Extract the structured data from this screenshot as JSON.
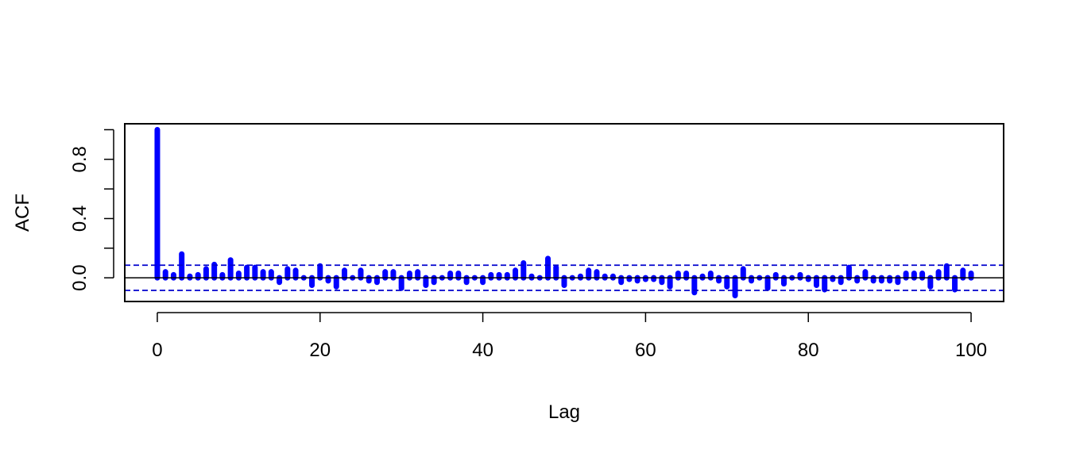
{
  "chart_data": {
    "type": "bar",
    "title": "",
    "xlabel": "Lag",
    "ylabel": "ACF",
    "xlim": [
      -4,
      104
    ],
    "ylim": [
      -0.16,
      1.04
    ],
    "x_ticks": [
      0,
      20,
      40,
      60,
      80,
      100
    ],
    "x_tick_labels": [
      "0",
      "20",
      "40",
      "60",
      "80",
      "100"
    ],
    "y_ticks": [
      0.0,
      0.4,
      0.8
    ],
    "y_tick_labels": [
      "0.0",
      "0.4",
      "0.8"
    ],
    "y_minor_ticks": [
      0.2,
      0.6,
      1.0
    ],
    "confidence_band": 0.085,
    "bar_color": "#0000ff",
    "band_color": "#0000cd",
    "grid": false,
    "legend": "none",
    "x": [
      0,
      1,
      2,
      3,
      4,
      5,
      6,
      7,
      8,
      9,
      10,
      11,
      12,
      13,
      14,
      15,
      16,
      17,
      18,
      19,
      20,
      21,
      22,
      23,
      24,
      25,
      26,
      27,
      28,
      29,
      30,
      31,
      32,
      33,
      34,
      35,
      36,
      37,
      38,
      39,
      40,
      41,
      42,
      43,
      44,
      45,
      46,
      47,
      48,
      49,
      50,
      51,
      52,
      53,
      54,
      55,
      56,
      57,
      58,
      59,
      60,
      61,
      62,
      63,
      64,
      65,
      66,
      67,
      68,
      69,
      70,
      71,
      72,
      73,
      74,
      75,
      76,
      77,
      78,
      79,
      80,
      81,
      82,
      83,
      84,
      85,
      86,
      87,
      88,
      89,
      90,
      91,
      92,
      93,
      94,
      95,
      96,
      97,
      98,
      99,
      100
    ],
    "values": [
      1.0,
      0.04,
      0.02,
      0.16,
      0.01,
      0.02,
      0.06,
      0.09,
      0.02,
      0.12,
      0.03,
      0.07,
      0.07,
      0.04,
      0.04,
      -0.03,
      0.06,
      0.05,
      0.0,
      -0.05,
      0.08,
      -0.02,
      -0.06,
      0.05,
      0.0,
      0.05,
      -0.02,
      -0.03,
      0.04,
      0.04,
      -0.07,
      0.03,
      0.04,
      -0.05,
      -0.03,
      0.0,
      0.03,
      0.03,
      -0.03,
      0.0,
      -0.03,
      0.02,
      0.02,
      0.02,
      0.05,
      0.1,
      0.01,
      0.0,
      0.13,
      0.07,
      -0.05,
      0.0,
      0.01,
      0.05,
      0.04,
      0.01,
      0.01,
      -0.03,
      -0.01,
      -0.02,
      -0.01,
      -0.01,
      -0.03,
      -0.06,
      0.03,
      0.03,
      -0.1,
      0.01,
      0.03,
      -0.02,
      -0.06,
      -0.12,
      0.06,
      -0.02,
      0.0,
      -0.07,
      0.02,
      -0.04,
      0.0,
      0.02,
      -0.01,
      -0.05,
      -0.08,
      -0.01,
      -0.03,
      0.07,
      -0.02,
      0.04,
      -0.02,
      -0.02,
      -0.02,
      -0.03,
      0.03,
      0.03,
      0.03,
      -0.06,
      0.04,
      0.08,
      -0.08,
      0.05,
      0.03
    ]
  }
}
